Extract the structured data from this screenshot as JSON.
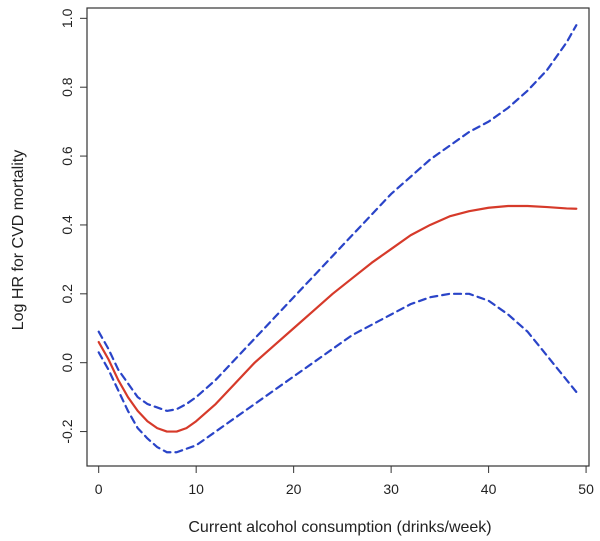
{
  "chart_data": {
    "type": "line",
    "title": "",
    "xlabel": "Current alcohol consumption (drinks/week)",
    "ylabel": "Log HR for CVD mortality",
    "xlim": [
      0,
      50
    ],
    "ylim": [
      -0.3,
      1.03
    ],
    "xticks": [
      0,
      10,
      20,
      30,
      40,
      50
    ],
    "yticks": [
      -0.2,
      0.0,
      0.2,
      0.4,
      0.6,
      0.8,
      1.0
    ],
    "grid": false,
    "legend": "none",
    "series": [
      {
        "role": "estimate",
        "color": "#d63a2a",
        "style": "solid",
        "x": [
          0,
          1,
          2,
          3,
          4,
          5,
          6,
          7,
          8,
          9,
          10,
          12,
          14,
          16,
          18,
          20,
          22,
          24,
          26,
          28,
          30,
          32,
          34,
          36,
          38,
          40,
          42,
          44,
          46,
          48,
          49
        ],
        "y": [
          0.06,
          0.01,
          -0.05,
          -0.1,
          -0.14,
          -0.17,
          -0.19,
          -0.2,
          -0.2,
          -0.19,
          -0.17,
          -0.12,
          -0.06,
          0.0,
          0.05,
          0.1,
          0.15,
          0.2,
          0.245,
          0.29,
          0.33,
          0.37,
          0.4,
          0.425,
          0.44,
          0.45,
          0.455,
          0.455,
          0.452,
          0.448,
          0.447
        ]
      },
      {
        "role": "upper",
        "color": "#2a44c8",
        "style": "dashed",
        "x": [
          0,
          1,
          2,
          3,
          4,
          5,
          6,
          7,
          8,
          9,
          10,
          12,
          14,
          16,
          18,
          20,
          22,
          24,
          26,
          28,
          30,
          32,
          34,
          36,
          38,
          40,
          42,
          44,
          46,
          48,
          49
        ],
        "y": [
          0.09,
          0.04,
          -0.02,
          -0.06,
          -0.1,
          -0.12,
          -0.13,
          -0.14,
          -0.135,
          -0.12,
          -0.1,
          -0.05,
          0.01,
          0.07,
          0.13,
          0.19,
          0.25,
          0.31,
          0.37,
          0.43,
          0.49,
          0.54,
          0.59,
          0.63,
          0.67,
          0.7,
          0.74,
          0.79,
          0.85,
          0.93,
          0.98
        ]
      },
      {
        "role": "lower",
        "color": "#2a44c8",
        "style": "dashed",
        "x": [
          0,
          1,
          2,
          3,
          4,
          5,
          6,
          7,
          8,
          9,
          10,
          12,
          14,
          16,
          18,
          20,
          22,
          24,
          26,
          28,
          30,
          32,
          34,
          36,
          38,
          40,
          42,
          44,
          46,
          48,
          49
        ],
        "y": [
          0.03,
          -0.02,
          -0.08,
          -0.14,
          -0.19,
          -0.22,
          -0.245,
          -0.26,
          -0.26,
          -0.25,
          -0.24,
          -0.2,
          -0.16,
          -0.12,
          -0.08,
          -0.04,
          0.0,
          0.04,
          0.08,
          0.11,
          0.14,
          0.17,
          0.19,
          0.2,
          0.2,
          0.18,
          0.14,
          0.09,
          0.02,
          -0.05,
          -0.085
        ]
      }
    ]
  }
}
